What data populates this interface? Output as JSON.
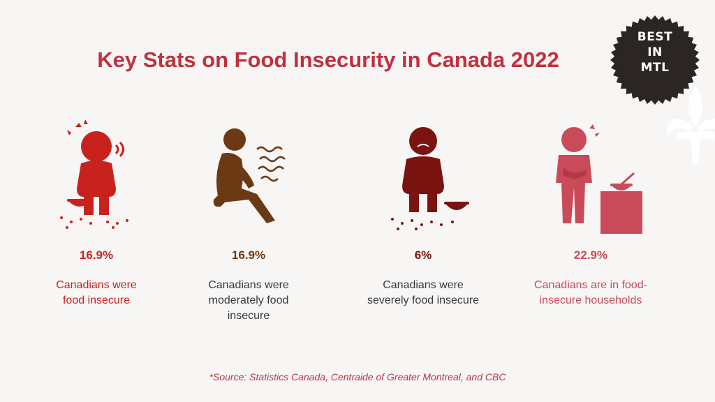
{
  "title": "Key Stats on Food Insecurity in Canada 2022",
  "badge": {
    "line1": "BEST",
    "line2": "IN",
    "line3": "MTL",
    "icon": "fleur-de-lis-icon"
  },
  "colors": {
    "title": "#c0313f",
    "stat1": "#c8221f",
    "stat2": "#6b3a14",
    "stat3": "#7a1411",
    "stat4": "#c94a58",
    "caption_dark": "#3a3a3a",
    "badge": "#2b2624"
  },
  "stats": [
    {
      "value": "16.9%",
      "caption": "Canadians were\nfood insecure",
      "icon": "sad-kneeling-person-icon"
    },
    {
      "value": "16.9%",
      "caption": "Canadians were\nmoderately food\ninsecure",
      "icon": "hungry-sitting-person-icon"
    },
    {
      "value": "6%",
      "caption": "Canadians were\nseverely food insecure",
      "icon": "starving-kneeling-person-icon"
    },
    {
      "value": "22.9%",
      "caption": "Canadians are in food-\ninsecure households",
      "icon": "person-with-empty-bowl-icon"
    }
  ],
  "source": "*Source:  Statistics Canada, Centraide of Greater Montreal, and CBC"
}
